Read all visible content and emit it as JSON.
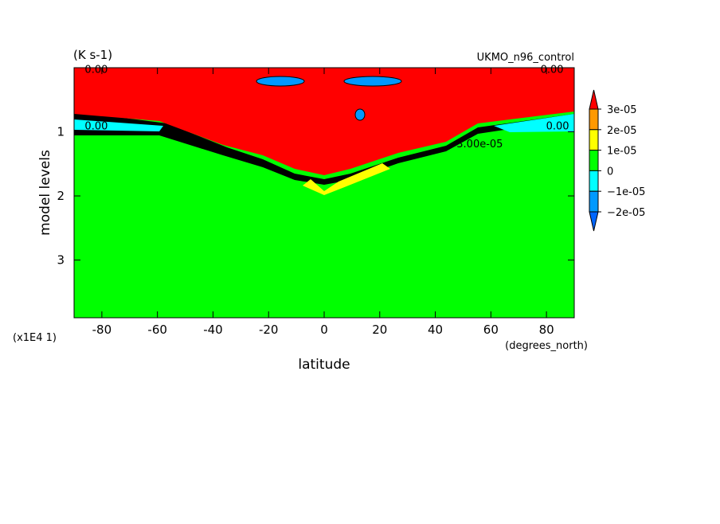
{
  "chart_data": {
    "type": "contour",
    "units": "(K s-1)",
    "title": "UKMO_n96_control",
    "x_label": "latitude",
    "x_units": "(degrees_north)",
    "y_label": "model levels",
    "y_multiplier": "(x1E4 1)",
    "xlim": [
      -90,
      90
    ],
    "xticks": [
      -80,
      -60,
      -40,
      -20,
      0,
      20,
      40,
      60,
      80
    ],
    "ylim": [
      0,
      3.9
    ],
    "yticks": [
      1,
      2,
      3
    ],
    "colorbar": {
      "levels": [
        {
          "value": 3e-05,
          "label": "3e-05"
        },
        {
          "value": 2e-05,
          "label": "2e-05"
        },
        {
          "value": 1e-05,
          "label": "1e-05"
        },
        0,
        {
          "value": -1e-05,
          "label": "−1e-05"
        },
        {
          "value": -2e-05,
          "label": "−2e-05"
        }
      ],
      "colors": [
        "#ff0000",
        "#ff9900",
        "#ffff00",
        "#00ff00",
        "#00ffff",
        "#0099ff",
        "#0066ff"
      ]
    },
    "contour_labels": [
      {
        "text": "0.00",
        "x": -82,
        "y": 0.02
      },
      {
        "text": "0.00",
        "x": 82,
        "y": 0.02
      },
      {
        "text": "0.00",
        "x": -82,
        "y": 0.9
      },
      {
        "text": "0.00",
        "x": 84,
        "y": 0.9
      },
      {
        "text": "3.00e-05",
        "x": 56,
        "y": 1.18
      }
    ]
  }
}
